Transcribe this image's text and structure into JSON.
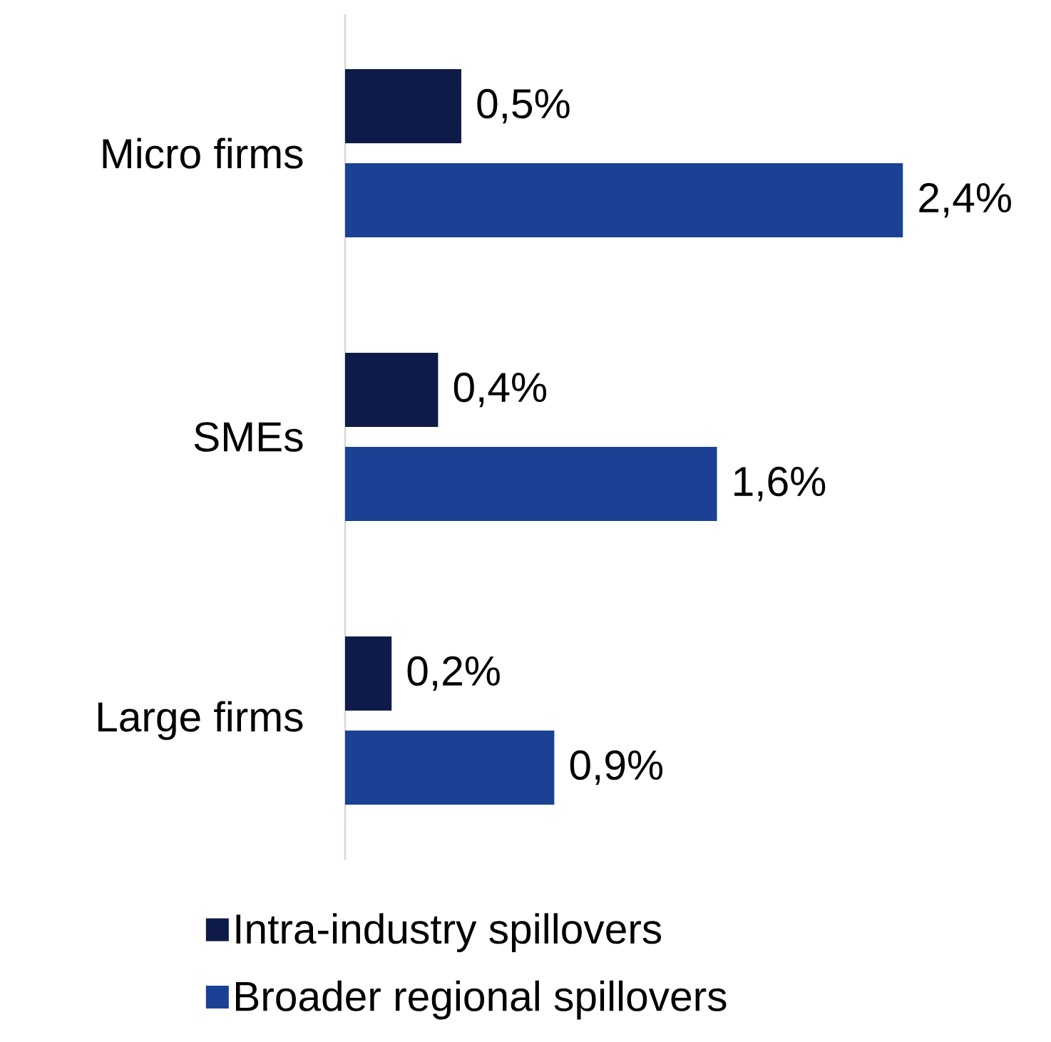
{
  "chart_data": {
    "type": "bar",
    "orientation": "horizontal",
    "categories": [
      "Micro firms",
      "SMEs",
      "Large firms"
    ],
    "series": [
      {
        "name": "Intra-industry spillovers",
        "color": "#0e1a48",
        "values": [
          0.5,
          0.4,
          0.2
        ],
        "value_labels": [
          "0,5%",
          "0,4%",
          "0,2%"
        ]
      },
      {
        "name": "Broader regional spillovers",
        "color": "#1a4194",
        "values": [
          2.4,
          1.6,
          0.9
        ],
        "value_labels": [
          "2,4%",
          "1,6%",
          "0,9%"
        ]
      }
    ],
    "legend": "bottom"
  }
}
